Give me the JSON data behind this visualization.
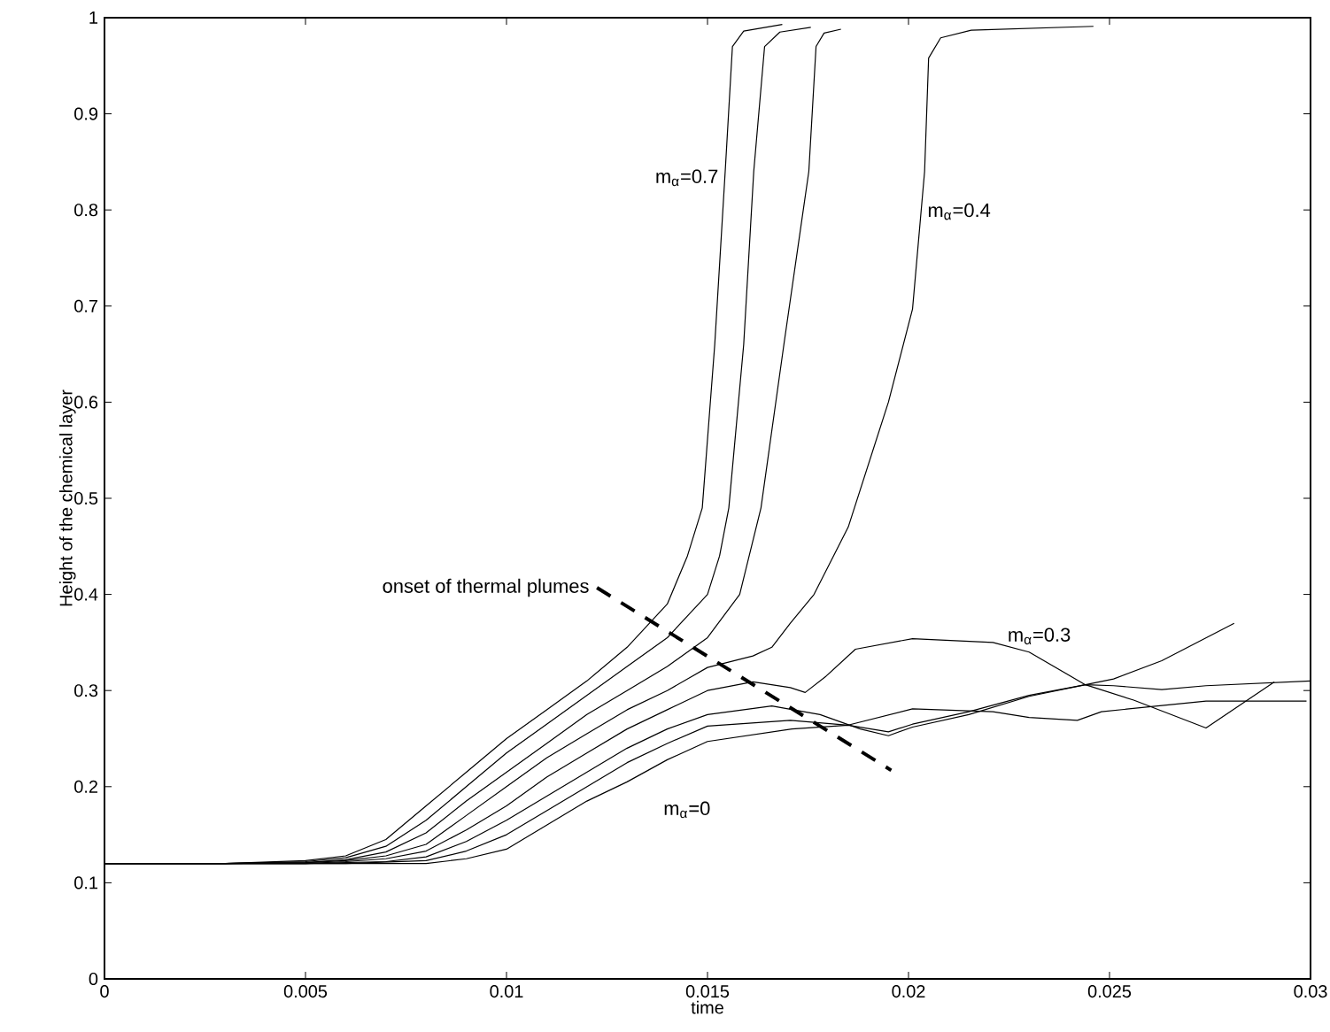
{
  "chart_data": {
    "type": "line",
    "xlabel": "time",
    "ylabel": "Height of the chemical layer",
    "xlim": [
      0,
      0.03
    ],
    "ylim": [
      0,
      1
    ],
    "xticks": [
      0,
      0.005,
      0.01,
      0.015,
      0.02,
      0.025,
      0.03
    ],
    "yticks": [
      0,
      0.1,
      0.2,
      0.3,
      0.4,
      0.5,
      0.6,
      0.7,
      0.8,
      0.9,
      1
    ],
    "grid": false,
    "legend": false,
    "marker": "none",
    "series": [
      {
        "name": "m$_{α}$=0.7",
        "color": "#000000",
        "line_style": "solid",
        "x": [
          0,
          0.003,
          0.005,
          0.006,
          0.007,
          0.008,
          0.009,
          0.01,
          0.011,
          0.012,
          0.013,
          0.014,
          0.0145,
          0.01487,
          0.01518,
          0.01544,
          0.01562,
          0.0159,
          0.01686
        ],
        "values": [
          0.12,
          0.12,
          0.123,
          0.128,
          0.145,
          0.18,
          0.215,
          0.25,
          0.28,
          0.31,
          0.345,
          0.39,
          0.44,
          0.49,
          0.66,
          0.84,
          0.97,
          0.986,
          0.993
        ]
      },
      {
        "color": "#000000",
        "line_style": "solid",
        "x": [
          0,
          0.003,
          0.005,
          0.006,
          0.007,
          0.008,
          0.009,
          0.01,
          0.011,
          0.012,
          0.013,
          0.014,
          0.015,
          0.0153,
          0.01553,
          0.0159,
          0.01615,
          0.01642,
          0.0168,
          0.01757
        ],
        "values": [
          0.12,
          0.12,
          0.122,
          0.126,
          0.138,
          0.165,
          0.2,
          0.235,
          0.265,
          0.295,
          0.325,
          0.355,
          0.4,
          0.44,
          0.49,
          0.66,
          0.84,
          0.97,
          0.985,
          0.99
        ]
      },
      {
        "color": "#000000",
        "line_style": "solid",
        "x": [
          0,
          0.003,
          0.005,
          0.006,
          0.007,
          0.008,
          0.009,
          0.01,
          0.011,
          0.012,
          0.013,
          0.014,
          0.015,
          0.0158,
          0.01633,
          0.0169,
          0.01752,
          0.0177,
          0.0179,
          0.01832
        ],
        "values": [
          0.12,
          0.12,
          0.121,
          0.124,
          0.132,
          0.152,
          0.185,
          0.215,
          0.245,
          0.275,
          0.3,
          0.325,
          0.355,
          0.4,
          0.49,
          0.66,
          0.84,
          0.97,
          0.984,
          0.988
        ]
      },
      {
        "name": "m$_{α}$=0.4",
        "color": "#000000",
        "line_style": "solid",
        "x": [
          0,
          0.003,
          0.005,
          0.006,
          0.007,
          0.008,
          0.009,
          0.01,
          0.011,
          0.012,
          0.013,
          0.014,
          0.015,
          0.01613,
          0.0166,
          0.01706,
          0.01765,
          0.0185,
          0.0195,
          0.0201,
          0.0204,
          0.0205,
          0.0208,
          0.02156,
          0.0246
        ],
        "values": [
          0.12,
          0.12,
          0.121,
          0.123,
          0.128,
          0.14,
          0.17,
          0.2,
          0.23,
          0.255,
          0.28,
          0.3,
          0.324,
          0.336,
          0.345,
          0.37,
          0.4,
          0.47,
          0.6,
          0.697,
          0.84,
          0.958,
          0.979,
          0.987,
          0.991
        ]
      },
      {
        "name": "m$_{α}$=0.3",
        "color": "#000000",
        "line_style": "solid",
        "x": [
          0,
          0.003,
          0.005,
          0.006,
          0.007,
          0.008,
          0.009,
          0.01,
          0.011,
          0.012,
          0.013,
          0.014,
          0.015,
          0.01613,
          0.01706,
          0.01743,
          0.01795,
          0.01868,
          0.0201,
          0.0221,
          0.023,
          0.0244,
          0.0256,
          0.0274,
          0.0291
        ],
        "values": [
          0.12,
          0.12,
          0.12,
          0.122,
          0.125,
          0.133,
          0.155,
          0.18,
          0.21,
          0.235,
          0.26,
          0.28,
          0.3,
          0.309,
          0.303,
          0.298,
          0.315,
          0.343,
          0.354,
          0.35,
          0.34,
          0.306,
          0.29,
          0.261,
          0.309
        ]
      },
      {
        "color": "#000000",
        "line_style": "solid",
        "x": [
          0,
          0.003,
          0.005,
          0.007,
          0.008,
          0.009,
          0.01,
          0.011,
          0.012,
          0.013,
          0.014,
          0.015,
          0.0166,
          0.0178,
          0.0188,
          0.0195,
          0.0201,
          0.0215,
          0.023,
          0.0244,
          0.0251,
          0.0263,
          0.0281
        ],
        "values": [
          0.12,
          0.12,
          0.12,
          0.122,
          0.127,
          0.143,
          0.165,
          0.19,
          0.215,
          0.24,
          0.26,
          0.275,
          0.284,
          0.275,
          0.26,
          0.253,
          0.262,
          0.275,
          0.294,
          0.306,
          0.312,
          0.331,
          0.37
        ]
      },
      {
        "color": "#000000",
        "line_style": "solid",
        "x": [
          0,
          0.003,
          0.006,
          0.008,
          0.009,
          0.01,
          0.011,
          0.012,
          0.013,
          0.014,
          0.015,
          0.01706,
          0.0185,
          0.0201,
          0.0221,
          0.023,
          0.0242,
          0.0248,
          0.0274,
          0.0299
        ],
        "values": [
          0.12,
          0.12,
          0.12,
          0.123,
          0.133,
          0.15,
          0.175,
          0.2,
          0.225,
          0.245,
          0.263,
          0.269,
          0.264,
          0.281,
          0.278,
          0.272,
          0.269,
          0.278,
          0.289,
          0.289
        ]
      },
      {
        "name": "m$_{α}$=0",
        "color": "#000000",
        "line_style": "solid",
        "x": [
          0,
          0.003,
          0.006,
          0.008,
          0.009,
          0.01,
          0.011,
          0.012,
          0.013,
          0.014,
          0.015,
          0.0171,
          0.0185,
          0.0195,
          0.0201,
          0.0215,
          0.023,
          0.0244,
          0.0251,
          0.0263,
          0.0274,
          0.03
        ],
        "values": [
          0.12,
          0.12,
          0.12,
          0.12,
          0.125,
          0.135,
          0.16,
          0.185,
          0.205,
          0.228,
          0.247,
          0.26,
          0.264,
          0.257,
          0.265,
          0.278,
          0.295,
          0.306,
          0.305,
          0.301,
          0.305,
          0.31
        ]
      },
      {
        "name": "onset of thermal plumes",
        "color": "#000000",
        "line_style": "dashed",
        "x": [
          0.01225,
          0.01957
        ],
        "values": [
          0.407,
          0.217
        ]
      }
    ]
  }
}
